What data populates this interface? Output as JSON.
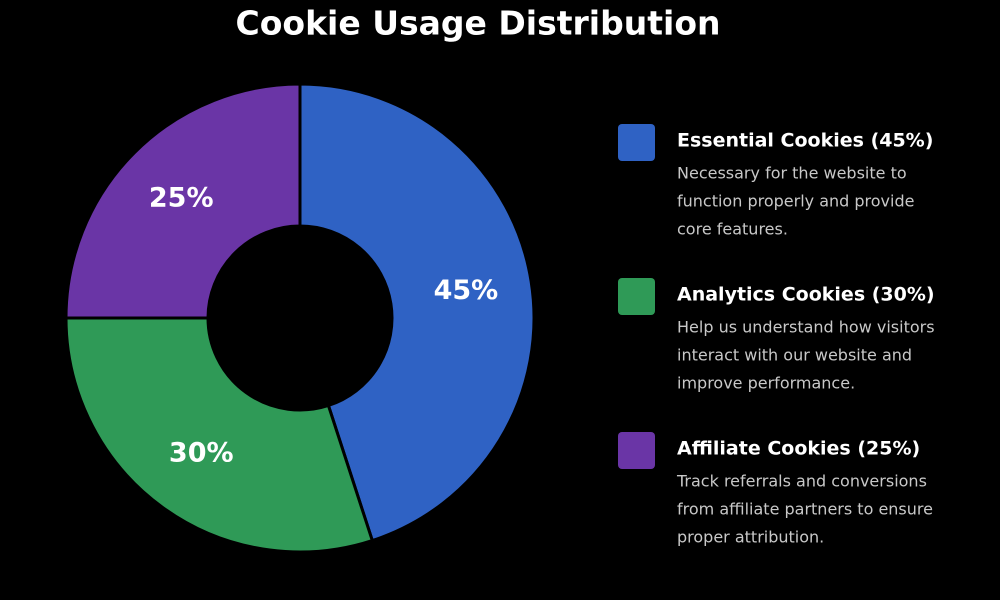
{
  "chart_data": {
    "type": "pie",
    "donut": true,
    "title": "Cookie Usage Distribution",
    "categories": [
      "Essential Cookies (45%)",
      "Analytics Cookies (30%)",
      "Affiliate Cookies (25%)"
    ],
    "values": [
      45,
      30,
      25
    ],
    "value_labels": [
      "45%",
      "30%",
      "25%"
    ],
    "colors": [
      "#2f62c4",
      "#2f9a57",
      "#6a35a6"
    ],
    "descriptions": [
      [
        "Necessary for the website to",
        "function properly and provide",
        "core features."
      ],
      [
        "Help us understand how visitors",
        "interact with our website and",
        "improve performance."
      ],
      [
        "Track referrals and conversions",
        "from affiliate partners to ensure",
        "proper attribution."
      ]
    ]
  }
}
